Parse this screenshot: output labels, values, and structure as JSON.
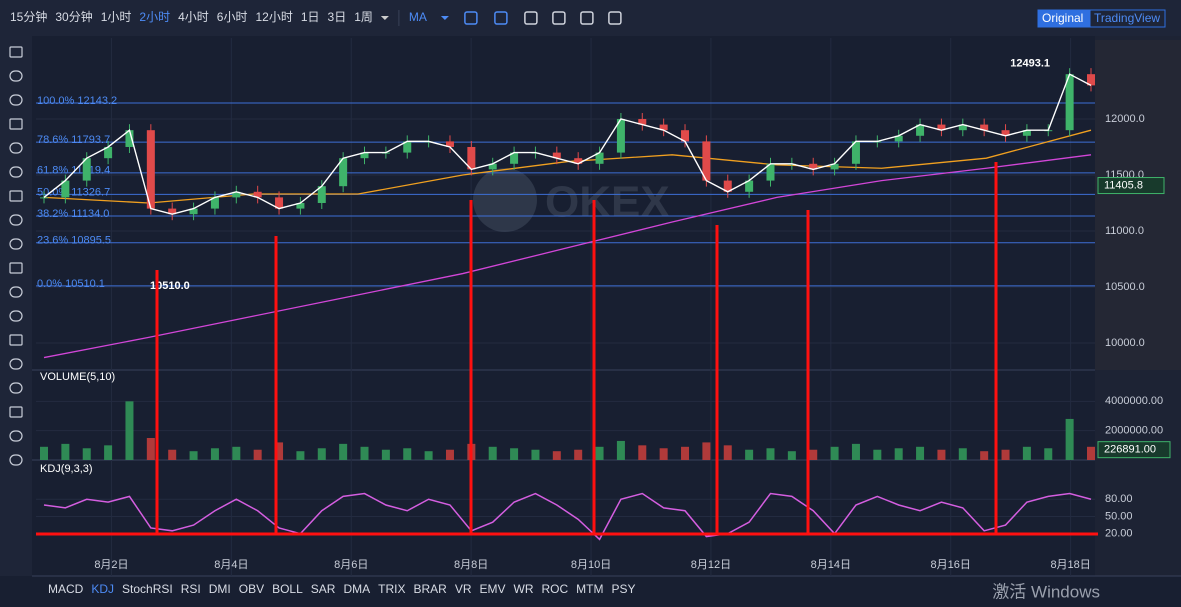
{
  "toolbar": {
    "intervals": [
      "15分钟",
      "30分钟",
      "1小时",
      "2小时",
      "4小时",
      "6小时",
      "12小时",
      "1日",
      "3日",
      "1周"
    ],
    "active_interval": 3,
    "indicator_menu": "MA",
    "views": [
      "Original",
      "TradingView"
    ],
    "active_view": 0
  },
  "chart": {
    "xlim": [
      0.875,
      18.34
    ],
    "dates": [
      {
        "value": 2,
        "label": "8月2日"
      },
      {
        "value": 4,
        "label": "8月4日"
      },
      {
        "value": 6,
        "label": "8月6日"
      },
      {
        "value": 8,
        "label": "8月8日"
      },
      {
        "value": 10,
        "label": "8月10日"
      },
      {
        "value": 12,
        "label": "8月12日"
      },
      {
        "value": 14,
        "label": "8月14日"
      },
      {
        "value": 16,
        "label": "8月16日"
      },
      {
        "value": 18,
        "label": "8月18日"
      }
    ],
    "price": {
      "ylim": [
        9759,
        12723
      ],
      "ticks": [
        {
          "value": 12000,
          "label": "12000.0"
        },
        {
          "value": 11500,
          "label": "11500.0"
        },
        {
          "value": 11000,
          "label": "11000.0"
        },
        {
          "value": 10500,
          "label": "10500.0"
        },
        {
          "value": 10000,
          "label": "10000.0"
        }
      ],
      "closes": [
        11300,
        11450,
        11650,
        11750,
        11900,
        11200,
        11150,
        11200,
        11300,
        11350,
        11300,
        11200,
        11250,
        11400,
        11650,
        11700,
        11700,
        11800,
        11800,
        11750,
        11550,
        11600,
        11700,
        11700,
        11650,
        11600,
        11700,
        12000,
        11950,
        11900,
        11800,
        11450,
        11350,
        11450,
        11600,
        11600,
        11550,
        11600,
        11800,
        11800,
        11850,
        11950,
        11900,
        11950,
        11900,
        11850,
        11900,
        11900,
        12400,
        12300
      ],
      "ma_slow": [
        9870,
        10050,
        10240,
        10430,
        10620,
        10850,
        11080,
        11300,
        11450,
        11560,
        11680
      ],
      "ma_mid": [
        11300,
        11250,
        11330,
        11330,
        11500,
        11620,
        11680,
        11590,
        11560,
        11650,
        11900
      ],
      "last": {
        "value": 11405.8,
        "label": "11405.8"
      },
      "high": {
        "value": 12493.1,
        "label": "12493.1"
      },
      "low": {
        "value": 10510,
        "label": "10510.0"
      }
    },
    "fib": [
      {
        "value": 12143.2,
        "label": "100.0% 12143.2"
      },
      {
        "value": 11793.7,
        "label": "78.6% 11793.7"
      },
      {
        "value": 11519.4,
        "label": "61.8% 11519.4"
      },
      {
        "value": 11326.7,
        "label": "50.0% 11326.7"
      },
      {
        "value": 11134.0,
        "label": "38.2% 11134.0"
      },
      {
        "value": 10895.5,
        "label": "23.6% 10895.5"
      },
      {
        "value": 10510.1,
        "label": "0.0% 10510.1"
      }
    ],
    "watermark": "OKEX",
    "volume": {
      "title": "VOLUME(5,10)",
      "ylim": [
        0,
        6000000
      ],
      "ticks": [
        {
          "value": 4000000,
          "label": "4000000.00"
        },
        {
          "value": 2000000,
          "label": "2000000.00"
        }
      ],
      "last": {
        "value": 226891,
        "label": "226891.00"
      },
      "values": [
        900000,
        1100000,
        800000,
        1000000,
        4000000,
        1500000,
        700000,
        600000,
        800000,
        900000,
        700000,
        1200000,
        600000,
        800000,
        1100000,
        900000,
        700000,
        800000,
        600000,
        700000,
        1100000,
        900000,
        800000,
        700000,
        600000,
        700000,
        900000,
        1300000,
        1000000,
        800000,
        900000,
        1200000,
        1000000,
        700000,
        800000,
        600000,
        700000,
        900000,
        1100000,
        700000,
        800000,
        900000,
        700000,
        800000,
        600000,
        700000,
        900000,
        800000,
        2800000,
        900000
      ]
    },
    "kdj": {
      "title": "KDJ(9,3,3)",
      "ylim": [
        -5,
        145
      ],
      "ticks": [
        {
          "value": 80,
          "label": "80.00"
        },
        {
          "value": 50,
          "label": "50.00"
        },
        {
          "value": 20,
          "label": "20.00"
        }
      ],
      "values": [
        70,
        65,
        80,
        75,
        85,
        30,
        25,
        35,
        60,
        80,
        60,
        30,
        20,
        60,
        85,
        90,
        70,
        60,
        80,
        70,
        25,
        40,
        75,
        90,
        70,
        45,
        10,
        80,
        90,
        65,
        60,
        15,
        20,
        40,
        90,
        85,
        60,
        20,
        70,
        85,
        70,
        60,
        75,
        65,
        25,
        35,
        75,
        85,
        90,
        80
      ]
    }
  },
  "indicators": [
    "MACD",
    "KDJ",
    "StochRSI",
    "RSI",
    "DMI",
    "OBV",
    "BOLL",
    "SAR",
    "DMA",
    "TRIX",
    "BRAR",
    "VR",
    "EMV",
    "WR",
    "ROC",
    "MTM",
    "PSY"
  ],
  "active_indicator": 1,
  "os_notice": "激活 Windows"
}
